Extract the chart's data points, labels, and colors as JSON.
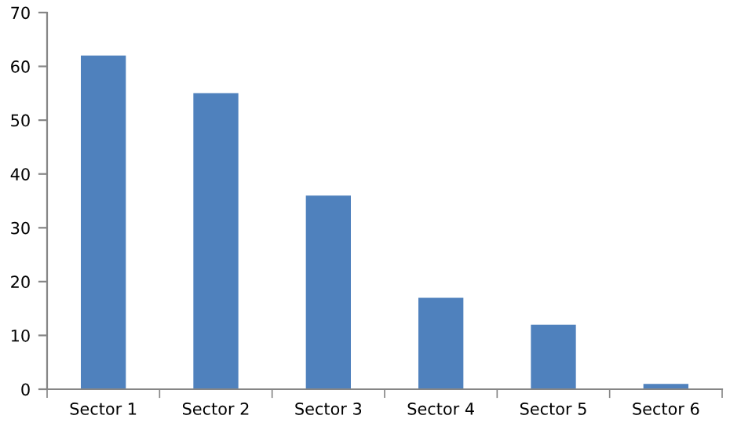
{
  "chart_data": {
    "type": "bar",
    "categories": [
      "Sector 1",
      "Sector 2",
      "Sector 3",
      "Sector 4",
      "Sector 5",
      "Sector 6"
    ],
    "values": [
      62,
      55,
      36,
      17,
      12,
      1
    ],
    "color": "#4f81bd",
    "ylim": [
      0,
      70
    ],
    "yticks": [
      0,
      10,
      20,
      30,
      40,
      50,
      60,
      70
    ],
    "grid": false,
    "legend": false
  }
}
